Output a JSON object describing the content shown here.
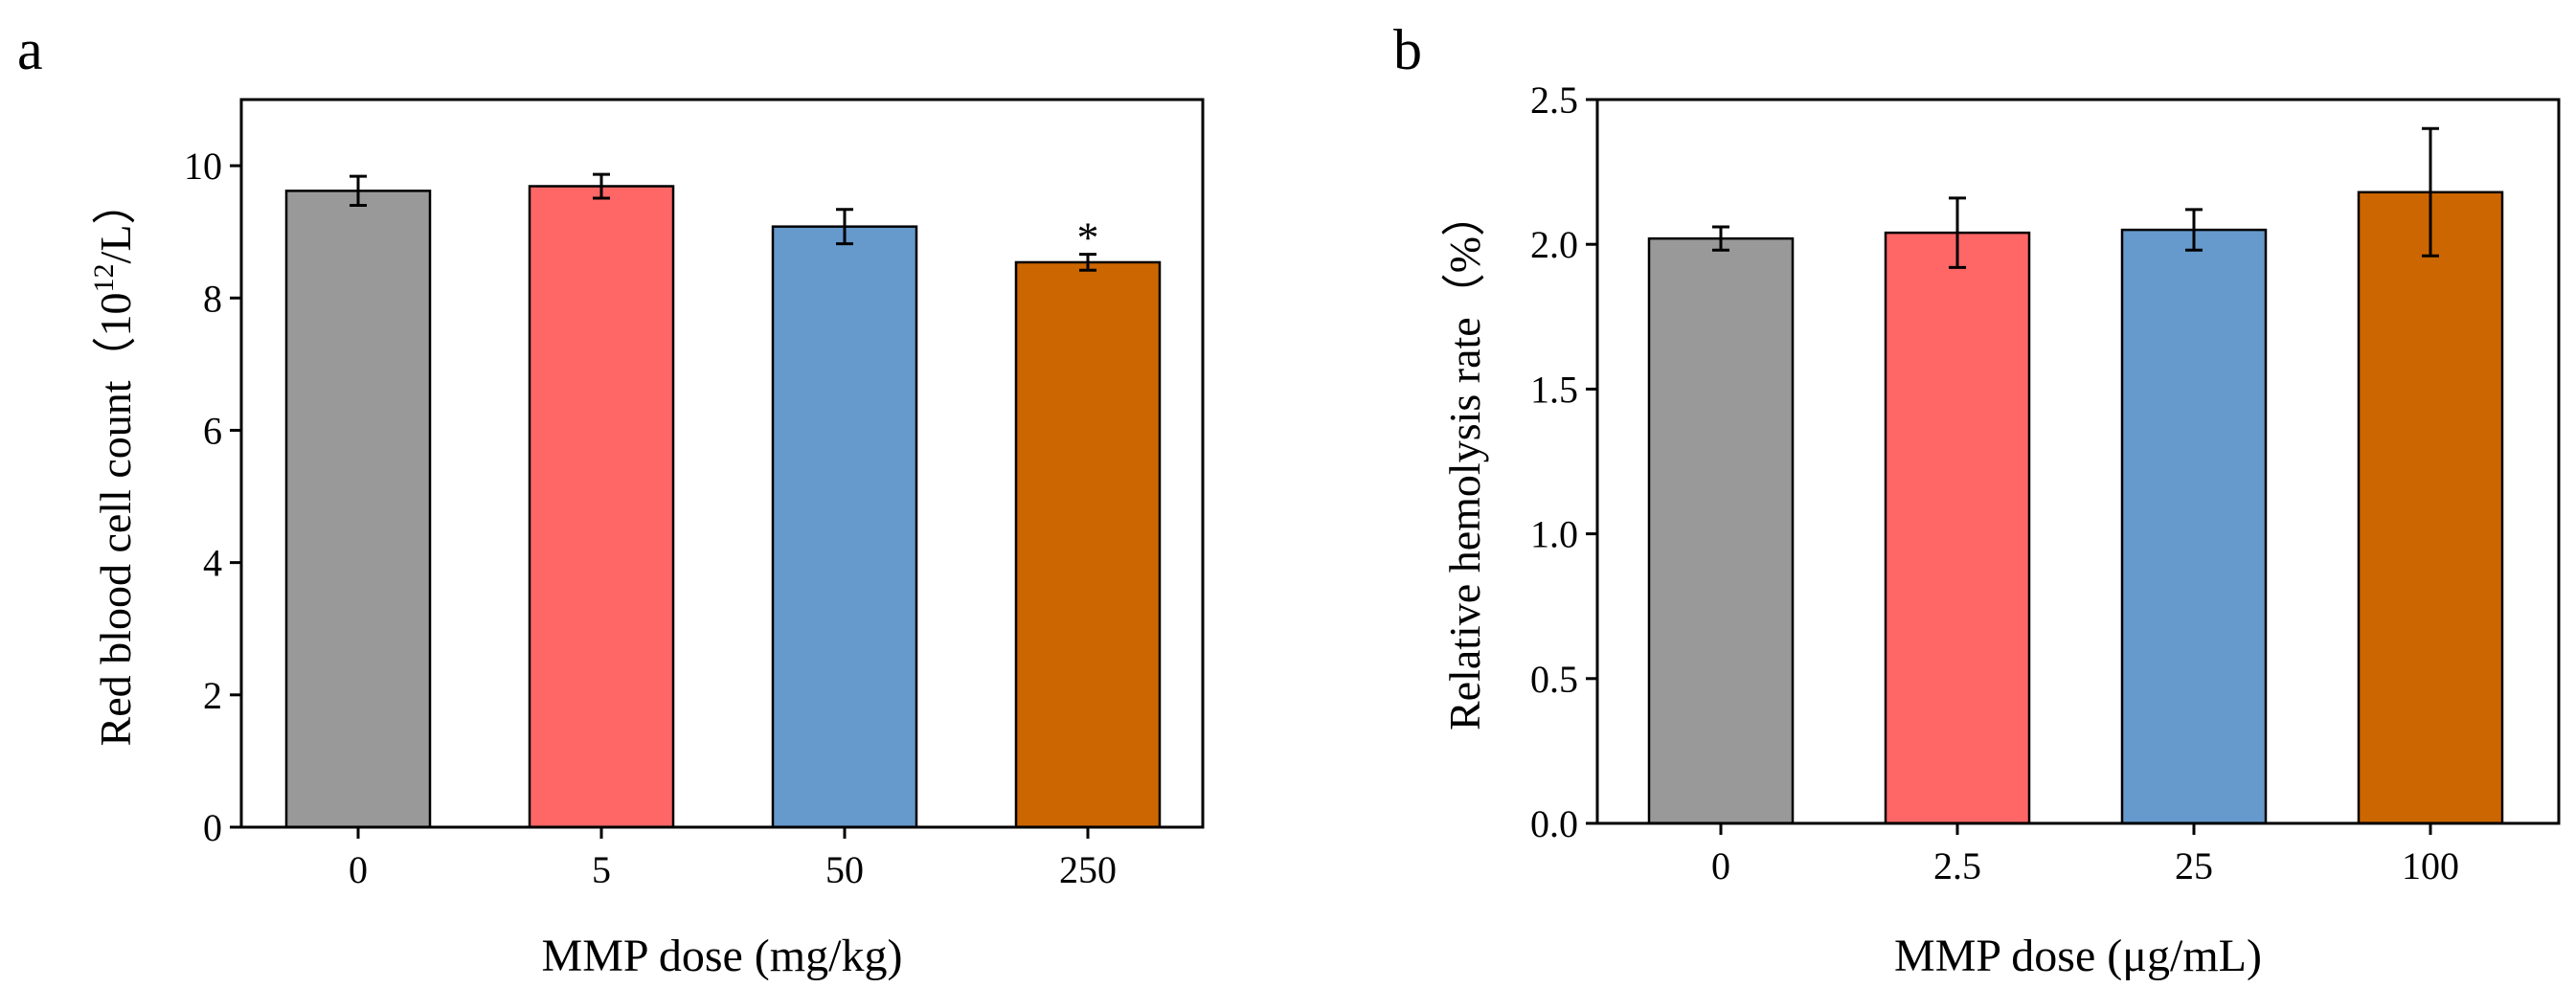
{
  "figure": {
    "panels": [
      "a",
      "b"
    ]
  },
  "chart_data": [
    {
      "panel": "a",
      "type": "bar",
      "categories": [
        "0",
        "5",
        "50",
        "250"
      ],
      "values": [
        9.62,
        9.69,
        9.08,
        8.54
      ],
      "errors": [
        0.22,
        0.18,
        0.26,
        0.12
      ],
      "colors": [
        "#999999",
        "#ff6666",
        "#6699cc",
        "#cc6600"
      ],
      "annotations": [
        "",
        "",
        "",
        "*"
      ],
      "xlabel": "MMP dose (mg/kg)",
      "ylabel": "Red blood cell count（10",
      "ylabel_sup": "12",
      "ylabel_end": "/L）",
      "ylim": [
        0,
        11
      ],
      "yticks": [
        0,
        2,
        4,
        6,
        8,
        10
      ],
      "ytick_labels": [
        "0",
        "2",
        "4",
        "6",
        "8",
        "10"
      ]
    },
    {
      "panel": "b",
      "type": "bar",
      "categories": [
        "0",
        "2.5",
        "25",
        "100"
      ],
      "values": [
        2.02,
        2.04,
        2.05,
        2.18
      ],
      "errors": [
        0.04,
        0.12,
        0.07,
        0.22
      ],
      "colors": [
        "#999999",
        "#ff6666",
        "#6699cc",
        "#cc6600"
      ],
      "annotations": [
        "",
        "",
        "",
        ""
      ],
      "xlabel": "MMP dose (μg/mL)",
      "ylabel": "Relative hemolysis rate（%）",
      "ylim": [
        0,
        2.5
      ],
      "yticks": [
        0,
        0.5,
        1.0,
        1.5,
        2.0,
        2.5
      ],
      "ytick_labels": [
        "0.0",
        "0.5",
        "1.0",
        "1.5",
        "2.0",
        "2.5"
      ]
    }
  ]
}
